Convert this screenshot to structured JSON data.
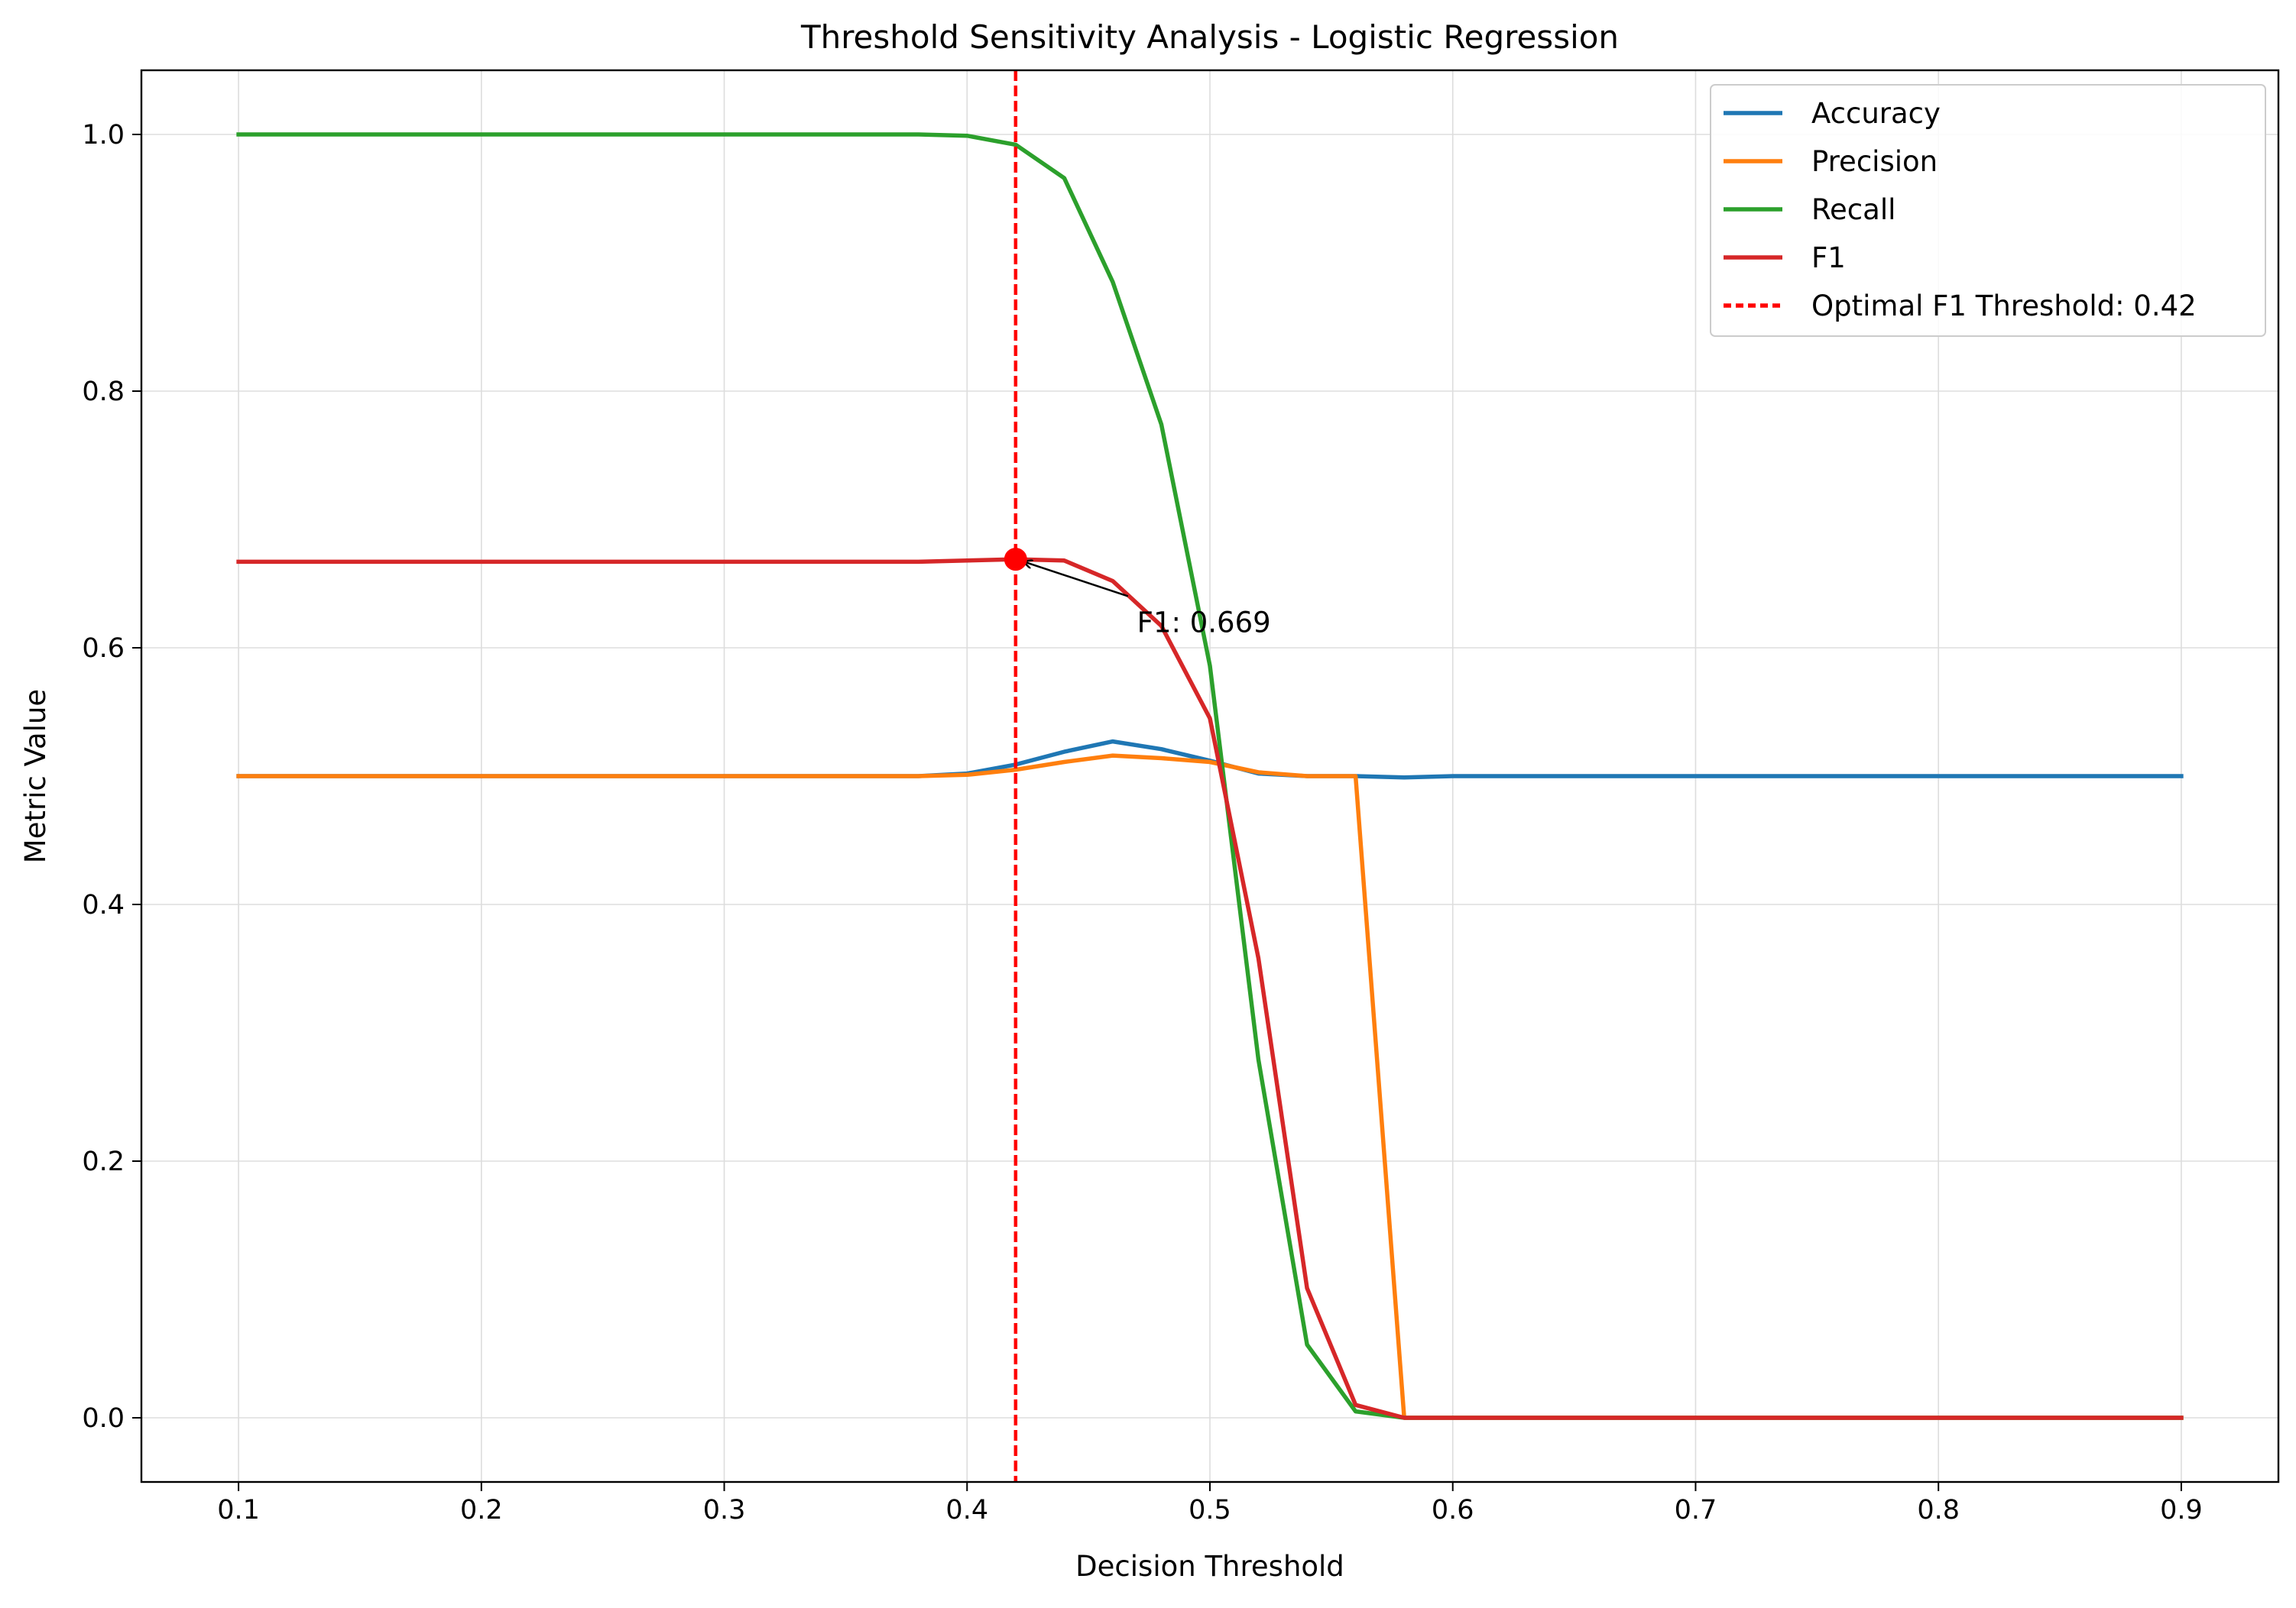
{
  "chart_data": {
    "type": "line",
    "title": "Threshold Sensitivity Analysis - Logistic Regression",
    "xlabel": "Decision Threshold",
    "ylabel": "Metric Value",
    "xlim": [
      0.06,
      0.94
    ],
    "ylim": [
      -0.05,
      1.05
    ],
    "xticks": [
      0.1,
      0.2,
      0.3,
      0.4,
      0.5,
      0.6,
      0.7,
      0.8,
      0.9
    ],
    "xtick_labels": [
      "0.1",
      "0.2",
      "0.3",
      "0.4",
      "0.5",
      "0.6",
      "0.7",
      "0.8",
      "0.9"
    ],
    "yticks": [
      0.0,
      0.2,
      0.4,
      0.6,
      0.8,
      1.0
    ],
    "ytick_labels": [
      "0.0",
      "0.2",
      "0.4",
      "0.6",
      "0.8",
      "1.0"
    ],
    "grid": true,
    "legend_position": "top-right",
    "x": [
      0.1,
      0.12,
      0.14,
      0.16,
      0.18,
      0.2,
      0.22,
      0.24,
      0.26,
      0.28,
      0.3,
      0.32,
      0.34,
      0.36,
      0.38,
      0.4,
      0.42,
      0.44,
      0.46,
      0.48,
      0.5,
      0.52,
      0.54,
      0.56,
      0.58,
      0.6,
      0.62,
      0.64,
      0.66,
      0.68,
      0.7,
      0.72,
      0.74,
      0.76,
      0.78,
      0.8,
      0.82,
      0.84,
      0.86,
      0.88,
      0.9
    ],
    "series": [
      {
        "name": "Accuracy",
        "color": "#1f77b4",
        "values": [
          0.5,
          0.5,
          0.5,
          0.5,
          0.5,
          0.5,
          0.5,
          0.5,
          0.5,
          0.5,
          0.5,
          0.5,
          0.5,
          0.5,
          0.5,
          0.502,
          0.509,
          0.519,
          0.527,
          0.521,
          0.512,
          0.502,
          0.5,
          0.5,
          0.499,
          0.5,
          0.5,
          0.5,
          0.5,
          0.5,
          0.5,
          0.5,
          0.5,
          0.5,
          0.5,
          0.5,
          0.5,
          0.5,
          0.5,
          0.5,
          0.5
        ]
      },
      {
        "name": "Precision",
        "color": "#ff7f0e",
        "values": [
          0.5,
          0.5,
          0.5,
          0.5,
          0.5,
          0.5,
          0.5,
          0.5,
          0.5,
          0.5,
          0.5,
          0.5,
          0.5,
          0.5,
          0.5,
          0.501,
          0.505,
          0.511,
          0.516,
          0.514,
          0.511,
          0.503,
          0.5,
          0.5,
          0.0,
          0.0,
          0.0,
          0.0,
          0.0,
          0.0,
          0.0,
          0.0,
          0.0,
          0.0,
          0.0,
          0.0,
          0.0,
          0.0,
          0.0,
          0.0,
          0.0
        ]
      },
      {
        "name": "Recall",
        "color": "#2ca02c",
        "values": [
          1.0,
          1.0,
          1.0,
          1.0,
          1.0,
          1.0,
          1.0,
          1.0,
          1.0,
          1.0,
          1.0,
          1.0,
          1.0,
          1.0,
          1.0,
          0.999,
          0.992,
          0.966,
          0.885,
          0.774,
          0.586,
          0.279,
          0.057,
          0.005,
          0.0,
          0.0,
          0.0,
          0.0,
          0.0,
          0.0,
          0.0,
          0.0,
          0.0,
          0.0,
          0.0,
          0.0,
          0.0,
          0.0,
          0.0,
          0.0,
          0.0
        ]
      },
      {
        "name": "F1",
        "color": "#d62728",
        "values": [
          0.667,
          0.667,
          0.667,
          0.667,
          0.667,
          0.667,
          0.667,
          0.667,
          0.667,
          0.667,
          0.667,
          0.667,
          0.667,
          0.667,
          0.667,
          0.668,
          0.669,
          0.668,
          0.652,
          0.617,
          0.545,
          0.358,
          0.101,
          0.01,
          0.0,
          0.0,
          0.0,
          0.0,
          0.0,
          0.0,
          0.0,
          0.0,
          0.0,
          0.0,
          0.0,
          0.0,
          0.0,
          0.0,
          0.0,
          0.0,
          0.0
        ]
      }
    ],
    "vline": {
      "name": "Optimal F1 Threshold: 0.42",
      "x": 0.42,
      "color": "#ff0000",
      "style": "dashed"
    },
    "marker": {
      "x": 0.42,
      "y": 0.669,
      "color": "#ff0000"
    },
    "annotation": {
      "text": "F1: 0.669",
      "point": [
        0.42,
        0.669
      ],
      "text_at": [
        0.47,
        0.62
      ]
    }
  }
}
